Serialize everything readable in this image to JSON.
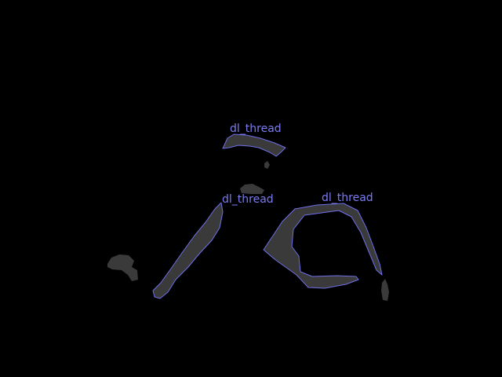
{
  "colors": {
    "background": "#000000",
    "blob_fill": "#3a3a3a",
    "outline": "#6f6fe8",
    "label": "#7b7bf2"
  },
  "detections": [
    {
      "label": "dl_thread"
    },
    {
      "label": "dl_thread"
    },
    {
      "label": "dl_thread"
    }
  ]
}
